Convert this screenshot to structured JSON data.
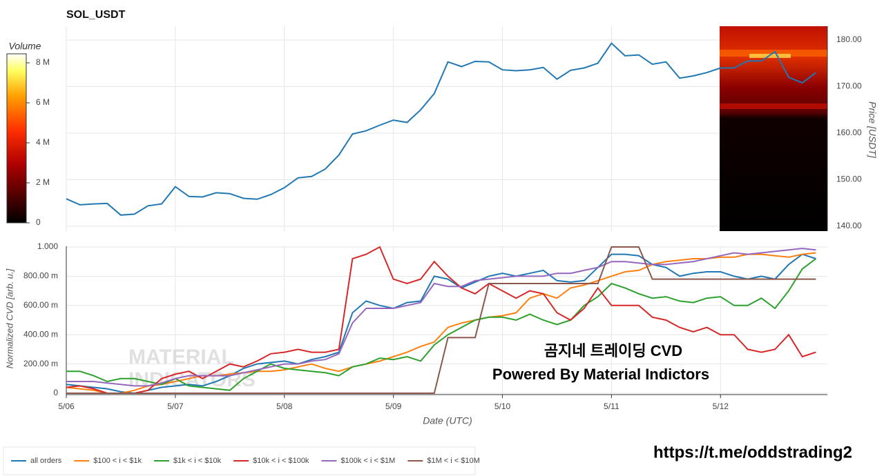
{
  "chart_data": [
    {
      "type": "line",
      "title": "SOL_USDT",
      "ylabel": "Price [USDT]",
      "color": "#1f77b4",
      "grid": true,
      "x": [
        0,
        0.125,
        0.25,
        0.375,
        0.5,
        0.625,
        0.75,
        0.875,
        1,
        1.125,
        1.25,
        1.375,
        1.5,
        1.625,
        1.75,
        1.875,
        2,
        2.125,
        2.25,
        2.375,
        2.5,
        2.625,
        2.75,
        2.875,
        3,
        3.125,
        3.25,
        3.375,
        3.5,
        3.625,
        3.75,
        3.875,
        4,
        4.125,
        4.25,
        4.375,
        4.5,
        4.625,
        4.75,
        4.875,
        5,
        5.125,
        5.25,
        5.375,
        5.5,
        5.625,
        5.75,
        5.875,
        6,
        6.125,
        6.25,
        6.375,
        6.5,
        6.625,
        6.75,
        6.875
      ],
      "values": [
        145.9,
        144.6,
        144.8,
        144.9,
        142.4,
        142.6,
        144.4,
        144.8,
        148.5,
        146.4,
        146.3,
        147.2,
        147.0,
        146.0,
        145.8,
        146.8,
        148.3,
        150.4,
        150.7,
        152.3,
        155.3,
        159.8,
        160.5,
        161.7,
        162.8,
        162.3,
        165.0,
        168.5,
        175.3,
        174.3,
        175.4,
        175.3,
        173.6,
        173.4,
        173.6,
        174.1,
        171.6,
        173.5,
        174.0,
        175.0,
        179.3,
        176.6,
        176.8,
        174.8,
        175.3,
        171.8,
        172.3,
        173.0,
        174.0,
        174.0,
        175.5,
        175.5,
        177.5,
        172.0,
        170.8,
        173.0
      ],
      "xlim": [
        0,
        6.98
      ],
      "ylim": [
        138.96,
        182.96
      ],
      "yticks": [
        {
          "value": 140,
          "label": "140.00"
        },
        {
          "value": 150,
          "label": "150.00"
        },
        {
          "value": 160,
          "label": "160.00"
        },
        {
          "value": 170,
          "label": "170.00"
        },
        {
          "value": 180,
          "label": "180.00"
        }
      ],
      "colorbar": {
        "label": "Volume",
        "lim": [
          0,
          8450000
        ],
        "ticks": [
          0,
          {
            "value": 2000000,
            "label": "2 M"
          },
          {
            "value": 4000000,
            "label": "4 M"
          },
          {
            "value": 6000000,
            "label": "6 M"
          },
          {
            "value": 8000000,
            "label": "8 M"
          }
        ]
      }
    },
    {
      "type": "line",
      "xlabel": "Date (UTC)",
      "ylabel": "Normalized CVD [arb. u.]",
      "grid": true,
      "legend": "bottom-left",
      "x": [
        0,
        0.125,
        0.25,
        0.375,
        0.5,
        0.625,
        0.75,
        0.875,
        1,
        1.125,
        1.25,
        1.375,
        1.5,
        1.625,
        1.75,
        1.875,
        2,
        2.125,
        2.25,
        2.375,
        2.5,
        2.625,
        2.75,
        2.875,
        3,
        3.125,
        3.25,
        3.375,
        3.5,
        3.625,
        3.75,
        3.875,
        4,
        4.125,
        4.25,
        4.375,
        4.5,
        4.625,
        4.75,
        4.875,
        5,
        5.125,
        5.25,
        5.375,
        5.5,
        5.625,
        5.75,
        5.875,
        6,
        6.125,
        6.25,
        6.375,
        6.5,
        6.625,
        6.75,
        6.875
      ],
      "xlim": [
        0,
        6.98
      ],
      "ylim": [
        -0.0094,
        1.0047
      ],
      "xticks": [
        {
          "value": 0,
          "label": "5/06"
        },
        {
          "value": 1,
          "label": "5/07"
        },
        {
          "value": 2,
          "label": "5/08"
        },
        {
          "value": 3,
          "label": "5/09"
        },
        {
          "value": 4,
          "label": "5/10"
        },
        {
          "value": 5,
          "label": "5/11"
        },
        {
          "value": 6,
          "label": "5/12"
        }
      ],
      "yticks": [
        0,
        {
          "value": 0.2,
          "label": "200.00 m"
        },
        {
          "value": 0.4,
          "label": "400.00 m"
        },
        {
          "value": 0.6,
          "label": "600.00 m"
        },
        {
          "value": 0.8,
          "label": "800.00 m"
        },
        {
          "value": 1,
          "label": "1.000"
        }
      ],
      "series": [
        {
          "name": "all orders",
          "color": "#1f77b4",
          "values": [
            0.06,
            0.05,
            0.04,
            0.03,
            0.01,
            0.0,
            0.02,
            0.04,
            0.05,
            0.06,
            0.05,
            0.08,
            0.12,
            0.17,
            0.2,
            0.21,
            0.22,
            0.2,
            0.23,
            0.25,
            0.28,
            0.55,
            0.63,
            0.6,
            0.58,
            0.62,
            0.63,
            0.8,
            0.78,
            0.72,
            0.76,
            0.8,
            0.82,
            0.8,
            0.82,
            0.84,
            0.77,
            0.76,
            0.77,
            0.86,
            0.95,
            0.95,
            0.94,
            0.88,
            0.86,
            0.8,
            0.82,
            0.83,
            0.83,
            0.8,
            0.78,
            0.8,
            0.78,
            0.88,
            0.95,
            0.92
          ]
        },
        {
          "name": "$100 < i < $1k",
          "color": "#ff7f0e",
          "values": [
            0.04,
            0.03,
            0.02,
            0.0,
            0.0,
            0.02,
            0.05,
            0.06,
            0.08,
            0.1,
            0.12,
            0.12,
            0.13,
            0.14,
            0.15,
            0.15,
            0.16,
            0.18,
            0.2,
            0.17,
            0.15,
            0.18,
            0.2,
            0.22,
            0.25,
            0.28,
            0.32,
            0.35,
            0.45,
            0.48,
            0.5,
            0.52,
            0.53,
            0.55,
            0.65,
            0.68,
            0.65,
            0.72,
            0.74,
            0.77,
            0.8,
            0.83,
            0.84,
            0.88,
            0.9,
            0.91,
            0.92,
            0.92,
            0.93,
            0.93,
            0.95,
            0.95,
            0.94,
            0.93,
            0.95,
            0.96
          ]
        },
        {
          "name": "$1k < i < $10k",
          "color": "#2ca02c",
          "values": [
            0.15,
            0.15,
            0.12,
            0.08,
            0.1,
            0.1,
            0.08,
            0.06,
            0.1,
            0.05,
            0.04,
            0.03,
            0.02,
            0.1,
            0.15,
            0.2,
            0.17,
            0.16,
            0.15,
            0.14,
            0.12,
            0.18,
            0.2,
            0.24,
            0.23,
            0.25,
            0.22,
            0.33,
            0.4,
            0.45,
            0.5,
            0.52,
            0.52,
            0.5,
            0.54,
            0.5,
            0.47,
            0.5,
            0.6,
            0.66,
            0.75,
            0.72,
            0.68,
            0.65,
            0.66,
            0.63,
            0.62,
            0.65,
            0.66,
            0.6,
            0.6,
            0.65,
            0.58,
            0.7,
            0.85,
            0.92
          ]
        },
        {
          "name": "$10k < i < $100k",
          "color": "#d62728",
          "values": [
            0.04,
            0.05,
            0.03,
            0.0,
            0.0,
            0.0,
            0.02,
            0.1,
            0.13,
            0.15,
            0.1,
            0.15,
            0.2,
            0.18,
            0.22,
            0.27,
            0.28,
            0.3,
            0.28,
            0.28,
            0.3,
            0.92,
            0.95,
            1.0,
            0.78,
            0.75,
            0.78,
            0.9,
            0.8,
            0.72,
            0.68,
            0.75,
            0.7,
            0.65,
            0.7,
            0.68,
            0.55,
            0.5,
            0.58,
            0.72,
            0.6,
            0.6,
            0.6,
            0.52,
            0.5,
            0.45,
            0.42,
            0.45,
            0.4,
            0.4,
            0.3,
            0.28,
            0.3,
            0.4,
            0.25,
            0.28
          ]
        },
        {
          "name": "$100k < i < $1M",
          "color": "#9467bd",
          "values": [
            0.08,
            0.08,
            0.08,
            0.07,
            0.06,
            0.05,
            0.05,
            0.07,
            0.1,
            0.12,
            0.12,
            0.12,
            0.12,
            0.14,
            0.16,
            0.18,
            0.2,
            0.2,
            0.22,
            0.23,
            0.27,
            0.48,
            0.58,
            0.58,
            0.58,
            0.6,
            0.62,
            0.75,
            0.73,
            0.73,
            0.77,
            0.78,
            0.79,
            0.8,
            0.8,
            0.8,
            0.82,
            0.82,
            0.84,
            0.86,
            0.9,
            0.9,
            0.89,
            0.88,
            0.88,
            0.89,
            0.9,
            0.92,
            0.94,
            0.96,
            0.95,
            0.96,
            0.97,
            0.98,
            0.99,
            0.98
          ]
        },
        {
          "name": "$1M < i < $10M",
          "color": "#8c564b",
          "values": [
            0,
            0,
            0,
            0,
            0,
            0,
            0,
            0,
            0,
            0,
            0,
            0,
            0,
            0,
            0,
            0,
            0,
            0,
            0,
            0,
            0,
            0,
            0,
            0,
            0,
            0,
            0,
            0,
            0.38,
            0.38,
            0.38,
            0.75,
            0.75,
            0.75,
            0.75,
            0.75,
            0.75,
            0.75,
            0.75,
            0.75,
            1.0,
            1.0,
            1.0,
            0.78,
            0.78,
            0.78,
            0.78,
            0.78,
            0.78,
            0.78,
            0.78,
            0.78,
            0.78,
            0.78,
            0.78,
            0.78
          ]
        }
      ],
      "watermark": [
        "MATERIAL",
        "INDICATORS"
      ],
      "annotations": [
        "곰지네 트레이딩 CVD",
        "Powered By Material Indictors"
      ]
    },
    {
      "type": "text",
      "text": "https://t.me/oddstrading2"
    }
  ]
}
